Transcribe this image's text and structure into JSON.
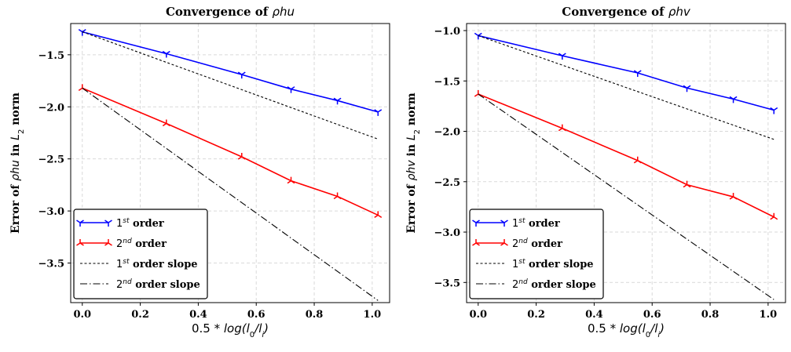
{
  "chart_data": [
    {
      "type": "line",
      "title_prefix": "Convergence of ",
      "title_var": "ρhu",
      "xlabel_prefix": "0.5 * ",
      "xlabel_math": "log(l",
      "xlabel_sub0": "0",
      "xlabel_mid": "/l",
      "xlabel_subi": "i",
      "xlabel_end": ")",
      "ylabel_prefix": "Error of ",
      "ylabel_var": "ρhu",
      "ylabel_mid": " in ",
      "ylabel_L": "L",
      "ylabel_sub": "2",
      "ylabel_suffix": " norm",
      "xlim": [
        -0.04,
        1.06
      ],
      "ylim": [
        -3.88,
        -1.2
      ],
      "xticks": [
        0.0,
        0.2,
        0.4,
        0.6,
        0.8,
        1.0
      ],
      "yticks": [
        -1.5,
        -2.0,
        -2.5,
        -3.0,
        -3.5
      ],
      "xticklabels": [
        "0.0",
        "0.2",
        "0.4",
        "0.6",
        "0.8",
        "1.0"
      ],
      "yticklabels": [
        "−1.5",
        "−2.0",
        "−2.5",
        "−3.0",
        "−3.5"
      ],
      "grid": true,
      "legend_position": "lower-left",
      "series": [
        {
          "name": "1st order",
          "sup": "st",
          "num": "1",
          "label_rest": " order",
          "color": "#0000ff",
          "style": "solid",
          "marker": "tri_down",
          "x": [
            0.0,
            0.29,
            0.55,
            0.72,
            0.88,
            1.02
          ],
          "y": [
            -1.28,
            -1.49,
            -1.69,
            -1.83,
            -1.94,
            -2.05
          ]
        },
        {
          "name": "2nd order",
          "sup": "nd",
          "num": "2",
          "label_rest": " order",
          "color": "#ff0000",
          "style": "solid",
          "marker": "tri_up",
          "x": [
            0.0,
            0.29,
            0.55,
            0.72,
            0.88,
            1.02
          ],
          "y": [
            -1.82,
            -2.16,
            -2.48,
            -2.71,
            -2.86,
            -3.04
          ]
        },
        {
          "name": "1st order slope",
          "sup": "st",
          "num": "1",
          "label_rest": " order slope",
          "color": "#000000",
          "style": "dotted",
          "marker": "none",
          "x": [
            0.0,
            1.02
          ],
          "y": [
            -1.28,
            -2.31
          ]
        },
        {
          "name": "2nd order slope",
          "sup": "nd",
          "num": "2",
          "label_rest": " order slope",
          "color": "#000000",
          "style": "dashdot",
          "marker": "none",
          "x": [
            0.0,
            1.02
          ],
          "y": [
            -1.82,
            -3.86
          ]
        }
      ]
    },
    {
      "type": "line",
      "title_prefix": "Convergence of ",
      "title_var": "ρhv",
      "xlabel_prefix": "0.5 * ",
      "xlabel_math": "log(l",
      "xlabel_sub0": "0",
      "xlabel_mid": "/l",
      "xlabel_subi": "i",
      "xlabel_end": ")",
      "ylabel_prefix": "Error of ",
      "ylabel_var": "ρhv",
      "ylabel_mid": " in ",
      "ylabel_L": "L",
      "ylabel_sub": "2",
      "ylabel_suffix": " norm",
      "xlim": [
        -0.04,
        1.06
      ],
      "ylim": [
        -3.7,
        -0.93
      ],
      "xticks": [
        0.0,
        0.2,
        0.4,
        0.6,
        0.8,
        1.0
      ],
      "yticks": [
        -1.0,
        -1.5,
        -2.0,
        -2.5,
        -3.0,
        -3.5
      ],
      "xticklabels": [
        "0.0",
        "0.2",
        "0.4",
        "0.6",
        "0.8",
        "1.0"
      ],
      "yticklabels": [
        "−1.0",
        "−1.5",
        "−2.0",
        "−2.5",
        "−3.0",
        "−3.5"
      ],
      "grid": true,
      "legend_position": "lower-left",
      "series": [
        {
          "name": "1st order",
          "sup": "st",
          "num": "1",
          "label_rest": " order",
          "color": "#0000ff",
          "style": "solid",
          "marker": "tri_down",
          "x": [
            0.0,
            0.29,
            0.55,
            0.72,
            0.88,
            1.02
          ],
          "y": [
            -1.05,
            -1.25,
            -1.42,
            -1.57,
            -1.68,
            -1.79
          ]
        },
        {
          "name": "2nd order",
          "sup": "nd",
          "num": "2",
          "label_rest": " order",
          "color": "#ff0000",
          "style": "solid",
          "marker": "tri_up",
          "x": [
            0.0,
            0.29,
            0.55,
            0.72,
            0.88,
            1.02
          ],
          "y": [
            -1.63,
            -1.97,
            -2.29,
            -2.53,
            -2.65,
            -2.85
          ]
        },
        {
          "name": "1st order slope",
          "sup": "st",
          "num": "1",
          "label_rest": " order slope",
          "color": "#000000",
          "style": "dotted",
          "marker": "none",
          "x": [
            0.0,
            1.02
          ],
          "y": [
            -1.05,
            -2.08
          ]
        },
        {
          "name": "2nd order slope",
          "sup": "nd",
          "num": "2",
          "label_rest": " order slope",
          "color": "#000000",
          "style": "dashdot",
          "marker": "none",
          "x": [
            0.0,
            1.02
          ],
          "y": [
            -1.63,
            -3.67
          ]
        }
      ]
    }
  ]
}
